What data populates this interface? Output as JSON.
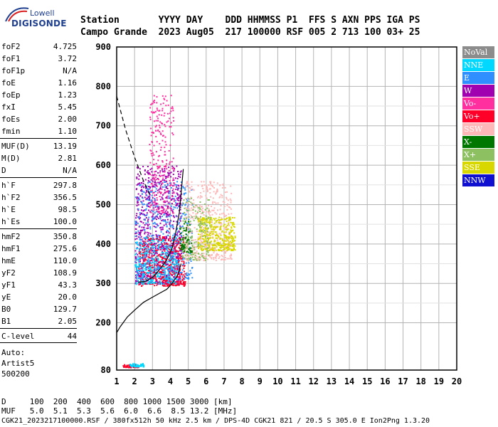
{
  "logo": {
    "lowell": "Lowell",
    "digisonde": "DIGISONDE"
  },
  "header": {
    "line1": "Station       YYYY DAY    DDD HHMMSS P1  FFS S AXN PPS IGA PS",
    "line2": "Campo Grande  2023 Aug05  217 100000 RSF 005 2 713 100 03+ 25"
  },
  "params_group1": [
    {
      "k": "foF2",
      "v": "4.725"
    },
    {
      "k": "foF1",
      "v": "3.72"
    },
    {
      "k": "foF1p",
      "v": "N/A"
    },
    {
      "k": "foE",
      "v": "1.16"
    },
    {
      "k": "foEp",
      "v": "1.23"
    },
    {
      "k": "fxI",
      "v": "5.45"
    },
    {
      "k": "foEs",
      "v": "2.00"
    },
    {
      "k": "fmin",
      "v": "1.10"
    }
  ],
  "params_group2": [
    {
      "k": "MUF(D)",
      "v": "13.19"
    },
    {
      "k": "M(D)",
      "v": "2.81"
    },
    {
      "k": "D",
      "v": "N/A"
    }
  ],
  "params_group3": [
    {
      "k": "h`F",
      "v": "297.8"
    },
    {
      "k": "h`F2",
      "v": "356.5"
    },
    {
      "k": "h`E",
      "v": "98.5"
    },
    {
      "k": "h`Es",
      "v": "100.0"
    }
  ],
  "params_group4": [
    {
      "k": "hmF2",
      "v": "350.8"
    },
    {
      "k": "hmF1",
      "v": "275.6"
    },
    {
      "k": "hmE",
      "v": "110.0"
    },
    {
      "k": "yF2",
      "v": "108.9"
    },
    {
      "k": "yF1",
      "v": "43.3"
    },
    {
      "k": "yE",
      "v": "20.0"
    },
    {
      "k": "B0",
      "v": "129.7"
    },
    {
      "k": "B1",
      "v": "2.05"
    }
  ],
  "params_group5": [
    {
      "k": "C-level",
      "v": "44"
    }
  ],
  "auto": {
    "l1": "Auto:",
    "l2": "Artist5",
    "l3": "500200"
  },
  "legend": [
    {
      "label": "NoVal",
      "color": "#8c8c8c"
    },
    {
      "label": "NNE",
      "color": "#00d8ff"
    },
    {
      "label": "E",
      "color": "#2f8fff"
    },
    {
      "label": "W",
      "color": "#a000b0"
    },
    {
      "label": "Vo-",
      "color": "#ff2fa0"
    },
    {
      "label": "Vo+",
      "color": "#ff0028"
    },
    {
      "label": "SSW",
      "color": "#ffb8b8"
    },
    {
      "label": "X-",
      "color": "#007800"
    },
    {
      "label": "X+",
      "color": "#8cc060"
    },
    {
      "label": "SSE",
      "color": "#d8d800"
    },
    {
      "label": "NNW",
      "color": "#1010d0"
    }
  ],
  "chart_data": {
    "type": "scatter",
    "xlim": [
      1,
      20
    ],
    "ylim": [
      80,
      900
    ],
    "x_ticks": [
      1,
      2,
      3,
      4,
      5,
      6,
      7,
      8,
      9,
      10,
      11,
      12,
      13,
      14,
      15,
      16,
      17,
      18,
      19,
      20
    ],
    "y_ticks": [
      80,
      200,
      300,
      400,
      500,
      600,
      700,
      800,
      900
    ],
    "grid": true,
    "profile_curve": [
      [
        1.0,
        175
      ],
      [
        1.2,
        190
      ],
      [
        1.6,
        215
      ],
      [
        2.0,
        232
      ],
      [
        2.5,
        252
      ],
      [
        3.0,
        265
      ],
      [
        3.4,
        275
      ],
      [
        3.8,
        285
      ],
      [
        4.1,
        300
      ],
      [
        4.4,
        320
      ],
      [
        4.6,
        350
      ]
    ],
    "trace_curve": [
      [
        2.2,
        303
      ],
      [
        2.6,
        305
      ],
      [
        3.0,
        315
      ],
      [
        3.4,
        335
      ],
      [
        3.8,
        360
      ],
      [
        4.1,
        390
      ],
      [
        4.3,
        430
      ],
      [
        4.5,
        480
      ],
      [
        4.6,
        530
      ],
      [
        4.72,
        590
      ]
    ],
    "dashed_curve": [
      [
        1.0,
        775
      ],
      [
        1.5,
        690
      ],
      [
        2.0,
        620
      ],
      [
        2.5,
        560
      ],
      [
        2.9,
        520
      ]
    ],
    "clouds": [
      {
        "series": "W",
        "x": [
          2.0,
          4.6
        ],
        "y": [
          300,
          600
        ],
        "n": 900
      },
      {
        "series": "Vo+",
        "x": [
          2.2,
          4.8
        ],
        "y": [
          295,
          420
        ],
        "n": 500
      },
      {
        "series": "Vo-",
        "x": [
          2.8,
          4.2
        ],
        "y": [
          480,
          780
        ],
        "n": 250
      },
      {
        "series": "E",
        "x": [
          2.0,
          5.2
        ],
        "y": [
          310,
          560
        ],
        "n": 450
      },
      {
        "series": "NNE",
        "x": [
          2.0,
          4.4
        ],
        "y": [
          300,
          420
        ],
        "n": 250
      },
      {
        "series": "SSW",
        "x": [
          4.8,
          7.4
        ],
        "y": [
          360,
          560
        ],
        "n": 450
      },
      {
        "series": "SSE",
        "x": [
          5.5,
          7.6
        ],
        "y": [
          385,
          470
        ],
        "n": 380
      },
      {
        "series": "X+",
        "x": [
          4.6,
          6.2
        ],
        "y": [
          360,
          520
        ],
        "n": 180
      },
      {
        "series": "X-",
        "x": [
          4.5,
          5.2
        ],
        "y": [
          380,
          460
        ],
        "n": 60
      },
      {
        "series": "Vo+",
        "x": [
          1.3,
          2.2
        ],
        "y": [
          88,
          96
        ],
        "n": 60
      },
      {
        "series": "NNE",
        "x": [
          1.7,
          2.5
        ],
        "y": [
          90,
          98
        ],
        "n": 50
      }
    ]
  },
  "footer": {
    "line1": "D     100  200  400  600  800 1000 1500 3000 [km]",
    "line2": "MUF   5.0  5.1  5.3  5.6  6.0  6.6  8.5 13.2 [MHz]"
  },
  "file_line": "CGK21_2023217100000.RSF / 380fx512h 50 kHz 2.5 km / DPS-4D CGK21 821 / 20.5 S 305.0 E Ion2Png 1.3.20"
}
